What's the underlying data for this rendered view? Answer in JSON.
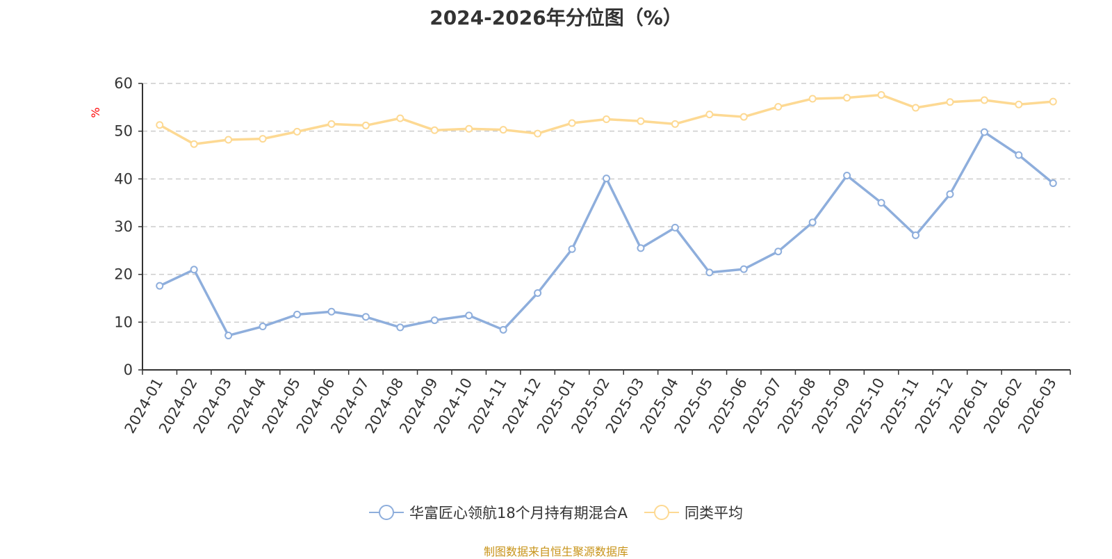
{
  "chart_data": {
    "type": "line",
    "title": "2024-2026年分位图（%）",
    "ylabel": "%",
    "xlabel": "",
    "ylim": [
      0,
      60
    ],
    "yticks": [
      0,
      10,
      20,
      30,
      40,
      50,
      60
    ],
    "grid": true,
    "legend_position": "bottom",
    "categories": [
      "2024-01",
      "2024-02",
      "2024-03",
      "2024-04",
      "2024-05",
      "2024-06",
      "2024-07",
      "2024-08",
      "2024-09",
      "2024-10",
      "2024-11",
      "2024-12",
      "2025-01",
      "2025-02",
      "2025-03",
      "2025-04",
      "2025-05",
      "2025-06",
      "2025-07",
      "2025-08",
      "2025-09",
      "2025-10",
      "2025-11",
      "2025-12",
      "2026-01",
      "2026-02",
      "2026-03"
    ],
    "series": [
      {
        "name": "华富匠心领航18个月持有期混合A",
        "color": "#8eaedc",
        "values": [
          17.6,
          21.0,
          7.2,
          9.1,
          11.6,
          12.2,
          11.1,
          8.9,
          10.4,
          11.4,
          8.4,
          16.1,
          25.3,
          40.1,
          25.5,
          29.8,
          20.4,
          21.1,
          24.8,
          30.9,
          40.7,
          35.0,
          28.2,
          36.8,
          49.8,
          45.0,
          39.1
        ]
      },
      {
        "name": "同类平均",
        "color": "#fdd993",
        "values": [
          51.3,
          47.3,
          48.2,
          48.4,
          49.9,
          51.5,
          51.2,
          52.7,
          50.2,
          50.5,
          50.3,
          49.5,
          51.7,
          52.5,
          52.1,
          51.5,
          53.5,
          53.0,
          55.1,
          56.8,
          57.0,
          57.6,
          54.9,
          56.1,
          56.5,
          55.6,
          56.2
        ]
      }
    ]
  },
  "source_note": "制图数据来自恒生聚源数据库",
  "axis_color": "#333333",
  "grid_color": "#cccccc",
  "ylabel_color": "#ff0000"
}
